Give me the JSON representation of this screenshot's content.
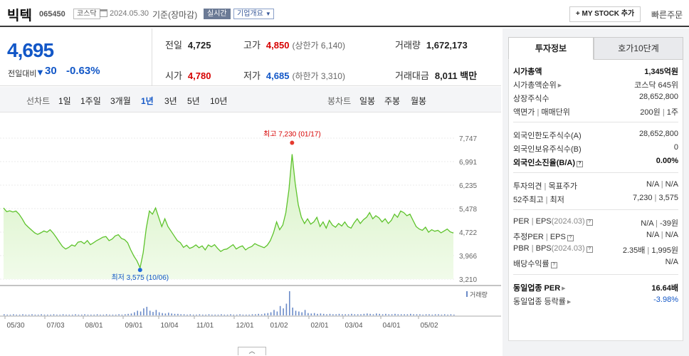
{
  "header": {
    "stock_name": "빅텍",
    "stock_code": "065450",
    "market": "코스닥",
    "date": "2024.05.30",
    "basis": "기준(장마감)",
    "realtime": "실시간",
    "company_info": "기업개요",
    "my_stock": "+ MY STOCK 추가",
    "quick_order": "빠른주문"
  },
  "price": {
    "current": "4,695",
    "change_label": "전일대비",
    "change_amount": "30",
    "change_pct": "-0.63%",
    "prev_label": "전일",
    "prev": "4,725",
    "high_label": "고가",
    "high": "4,850",
    "upper_limit": "(상한가 6,140)",
    "volume_label": "거래량",
    "volume": "1,672,173",
    "open_label": "시가",
    "open": "4,780",
    "low_label": "저가",
    "low": "4,685",
    "lower_limit": "(하한가 3,310)",
    "amount_label": "거래대금",
    "amount": "8,011 백만"
  },
  "chart_tabs": {
    "line_label": "선차트",
    "line_items": [
      "1일",
      "1주일",
      "3개월",
      "1년",
      "3년",
      "5년",
      "10년"
    ],
    "active": "1년",
    "candle_label": "봉차트",
    "candle_items": [
      "일봉",
      "주봉",
      "월봉"
    ]
  },
  "chart_data": {
    "type": "area",
    "title": "",
    "y_ticks": [
      "7,747",
      "6,991",
      "6,235",
      "5,478",
      "4,722",
      "3,966",
      "3,210"
    ],
    "ylim": [
      3210,
      7747
    ],
    "x_ticks": [
      "05/30",
      "07/03",
      "08/01",
      "09/01",
      "10/04",
      "11/01",
      "12/01",
      "01/02",
      "02/01",
      "03/04",
      "04/01",
      "05/02"
    ],
    "series": [
      {
        "values": [
          5500,
          5380,
          5410,
          5370,
          5400,
          5300,
          5150,
          4980,
          4880,
          4790,
          4700,
          4650,
          4700,
          4760,
          4720,
          4800,
          4690,
          4550,
          4400,
          4260,
          4180,
          4230,
          4310,
          4270,
          4400,
          4420,
          4350,
          4450,
          4320,
          4380,
          4450,
          4500,
          4560,
          4580,
          4450,
          4500,
          4600,
          4640,
          4520,
          4480,
          4380,
          4150,
          3950,
          3800,
          3575,
          4050,
          4850,
          5400,
          5300,
          5500,
          5200,
          4900,
          5150,
          4900,
          4750,
          4600,
          4450,
          4380,
          4230,
          4300,
          4200,
          4240,
          4310,
          4220,
          4280,
          4150,
          4310,
          4250,
          4320,
          4200,
          4100,
          4160,
          4180,
          4250,
          4320,
          4180,
          4240,
          4280,
          4150,
          4220,
          4260,
          4350,
          4300,
          4260,
          4220,
          4300,
          4450,
          4700,
          5050,
          4800,
          4950,
          5350,
          6100,
          7230,
          6300,
          5600,
          5200,
          5000,
          5150,
          4980,
          5050,
          5200,
          4900,
          5050,
          4850,
          5100,
          4950,
          4880,
          5000,
          4920,
          5050,
          4900,
          4850,
          5020,
          5150,
          5000,
          5120,
          5200,
          5350,
          5150,
          5250,
          5180,
          5050,
          5150,
          5000,
          5100,
          5300,
          5200,
          5400,
          5350,
          5250,
          5300,
          5100,
          4900,
          4820,
          4780,
          4880,
          4720,
          4800,
          4750,
          4780,
          4700,
          4760,
          4820,
          4730,
          4695
        ]
      }
    ],
    "max_annotation": "최고 7,230 (01/17)",
    "min_annotation": "최저 3,575 (10/06)",
    "volume_label": "거래량",
    "volume_values": [
      3,
      2,
      2,
      3,
      2,
      2,
      3,
      2,
      2,
      3,
      2,
      2,
      3,
      2,
      2,
      2,
      3,
      2,
      2,
      3,
      2,
      2,
      2,
      3,
      2,
      2,
      3,
      2,
      2,
      2,
      3,
      2,
      2,
      3,
      2,
      2,
      2,
      3,
      2,
      3,
      4,
      5,
      8,
      12,
      10,
      18,
      22,
      12,
      9,
      14,
      8,
      6,
      5,
      7,
      5,
      4,
      4,
      3,
      3,
      2,
      3,
      2,
      2,
      3,
      2,
      2,
      3,
      2,
      2,
      2,
      3,
      2,
      2,
      3,
      2,
      2,
      3,
      2,
      2,
      2,
      3,
      3,
      4,
      3,
      5,
      6,
      8,
      14,
      10,
      24,
      18,
      30,
      62,
      20,
      12,
      10,
      8,
      14,
      6,
      5,
      6,
      4,
      5,
      4,
      3,
      4,
      3,
      3,
      4,
      3,
      3,
      3,
      4,
      3,
      3,
      3,
      4,
      5,
      4,
      3,
      5,
      4,
      3,
      4,
      3,
      3,
      4,
      3,
      3,
      3,
      3,
      4,
      3,
      3,
      3,
      2,
      3,
      3,
      2,
      3,
      3,
      2,
      3,
      2,
      3,
      2
    ]
  },
  "side": {
    "tab_active": "투자정보",
    "tab_inactive": "호가10단계",
    "rows": {
      "market_cap": {
        "k": "시가총액",
        "v": "1,345억원"
      },
      "market_cap_rank": {
        "k": "시가총액순위",
        "v": "코스닥 645위"
      },
      "listed_shares": {
        "k": "상장주식수",
        "v": "28,652,800"
      },
      "par_value": {
        "k": "액면가",
        "k2": "매매단위",
        "v": "200원",
        "v2": "1주"
      },
      "foreign_limit": {
        "k": "외국인한도주식수(A)",
        "v": "28,652,800"
      },
      "foreign_hold": {
        "k": "외국인보유주식수(B)",
        "v": "0"
      },
      "foreign_ratio": {
        "k": "외국인소진율(B/A)",
        "v": "0.00%"
      },
      "opinion": {
        "k": "투자의견",
        "k2": "목표주가",
        "v": "N/A",
        "v2": "N/A"
      },
      "week52": {
        "k": "52주최고",
        "k2": "최저",
        "v": "7,230",
        "v2": "3,575"
      },
      "per_eps": {
        "k": "PER",
        "k2": "EPS",
        "k3": "(2024.03)",
        "v": "N/A",
        "v2": "-39원"
      },
      "est_per_eps": {
        "k": "추정PER",
        "k2": "EPS",
        "v": "N/A",
        "v2": "N/A"
      },
      "pbr_bps": {
        "k": "PBR",
        "k2": "BPS",
        "k3": "(2024.03)",
        "v": "2.35배",
        "v2": "1,995원"
      },
      "dividend": {
        "k": "배당수익률",
        "v": "N/A"
      },
      "sector_per": {
        "k": "동일업종 PER",
        "v": "16.64배"
      },
      "sector_rate": {
        "k": "동일업종 등락률",
        "v": "-3.98%"
      }
    }
  }
}
